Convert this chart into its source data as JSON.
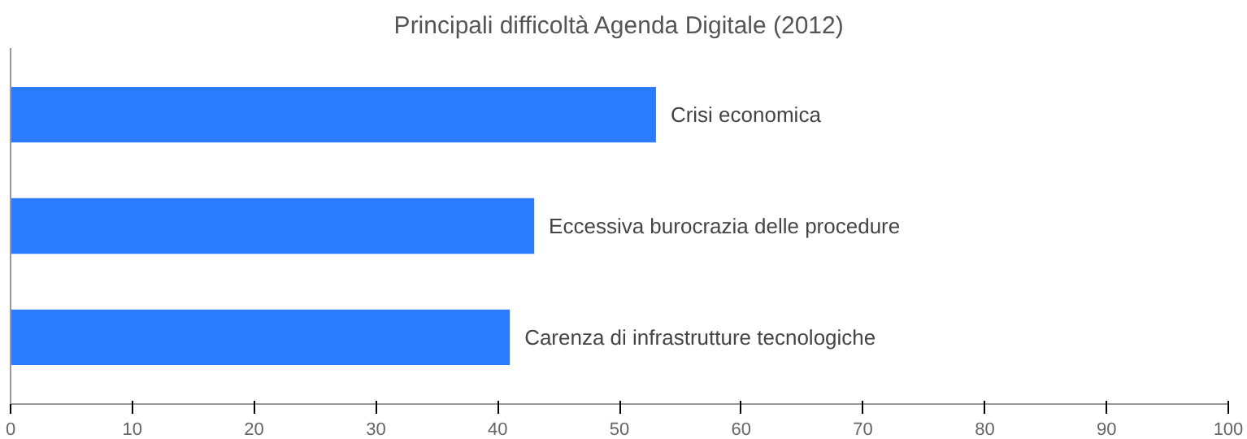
{
  "chart_data": {
    "type": "bar",
    "orientation": "horizontal",
    "title": "Principali difficoltà Agenda Digitale (2012)",
    "categories": [
      "Crisi economica",
      "Eccessiva burocrazia delle procedure",
      "Carenza di infrastrutture tecnologiche"
    ],
    "values": [
      53,
      43,
      41
    ],
    "color": "#2b7bff",
    "xlim": [
      0,
      100
    ],
    "xticks": [
      0,
      10,
      20,
      30,
      40,
      50,
      60,
      70,
      80,
      90,
      100
    ]
  }
}
